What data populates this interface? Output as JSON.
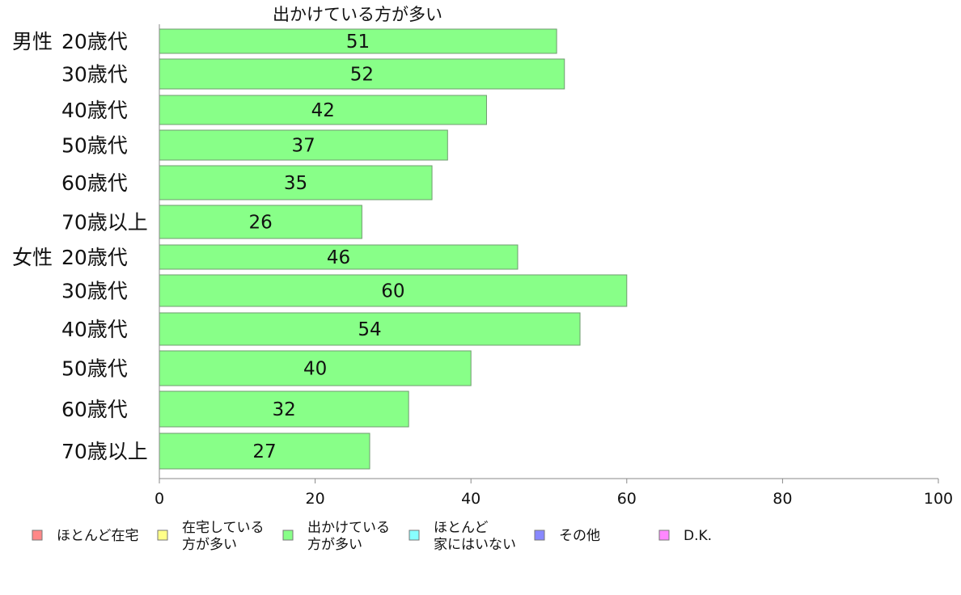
{
  "chart_data": {
    "type": "bar",
    "orientation": "horizontal",
    "series": [
      {
        "name": "出かけている方が多い",
        "color": "#88ff88",
        "values": [
          51,
          52,
          42,
          37,
          35,
          26,
          46,
          60,
          54,
          40,
          32,
          27
        ]
      }
    ],
    "title": "出かけている方が多い",
    "groups": [
      "男性",
      "女性"
    ],
    "categories": [
      "20歳代",
      "30歳代",
      "40歳代",
      "50歳代",
      "60歳代",
      "70歳以上",
      "20歳代",
      "30歳代",
      "40歳代",
      "50歳代",
      "60歳代",
      "70歳以上"
    ],
    "xlim": [
      0,
      100
    ],
    "xticks": [
      0,
      20,
      40,
      60,
      80,
      100
    ],
    "legend": {
      "position": "bottom",
      "entries": [
        {
          "lines": [
            "ほとんど在宅"
          ],
          "color": "#ff8888"
        },
        {
          "lines": [
            "在宅している",
            "方が多い"
          ],
          "color": "#ffff88"
        },
        {
          "lines": [
            "出かけている",
            "方が多い"
          ],
          "color": "#88ff88"
        },
        {
          "lines": [
            "ほとんど",
            "家にはいない"
          ],
          "color": "#88ffff"
        },
        {
          "lines": [
            "その他"
          ],
          "color": "#8888ff"
        },
        {
          "lines": [
            "D.K."
          ],
          "color": "#ff88ff"
        }
      ]
    }
  }
}
